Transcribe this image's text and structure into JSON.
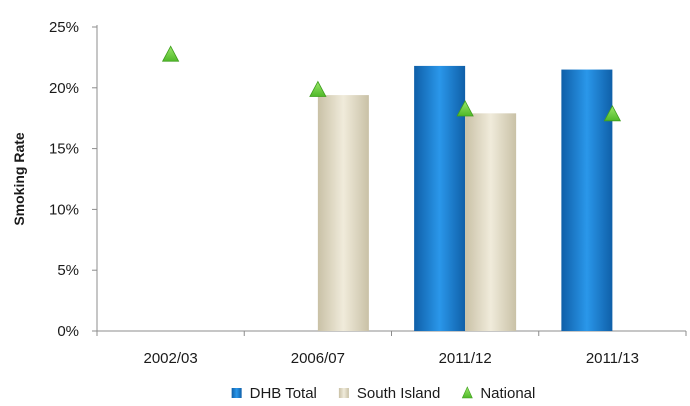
{
  "chart_data": {
    "type": "bar",
    "title": "",
    "xlabel": "",
    "ylabel": "Smoking Rate",
    "categories": [
      "2002/03",
      "2006/07",
      "2011/12",
      "2011/13"
    ],
    "ylim": [
      0,
      25
    ],
    "yticks": [
      0,
      5,
      10,
      15,
      20,
      25
    ],
    "ytick_labels": [
      "0%",
      "5%",
      "10%",
      "15%",
      "20%",
      "25%"
    ],
    "grid": false,
    "legend_position": "bottom",
    "series": [
      {
        "name": "DHB Total",
        "kind": "bar",
        "color": "#1a7fd4",
        "values": [
          null,
          null,
          21.8,
          21.5
        ]
      },
      {
        "name": "South Island",
        "kind": "bar",
        "color": "#ddd6c0",
        "values": [
          null,
          19.4,
          17.9,
          null
        ]
      },
      {
        "name": "National",
        "kind": "marker",
        "marker": "triangle",
        "color": "#6ccf3a",
        "values": [
          22.8,
          19.9,
          18.3,
          17.9
        ]
      }
    ]
  }
}
